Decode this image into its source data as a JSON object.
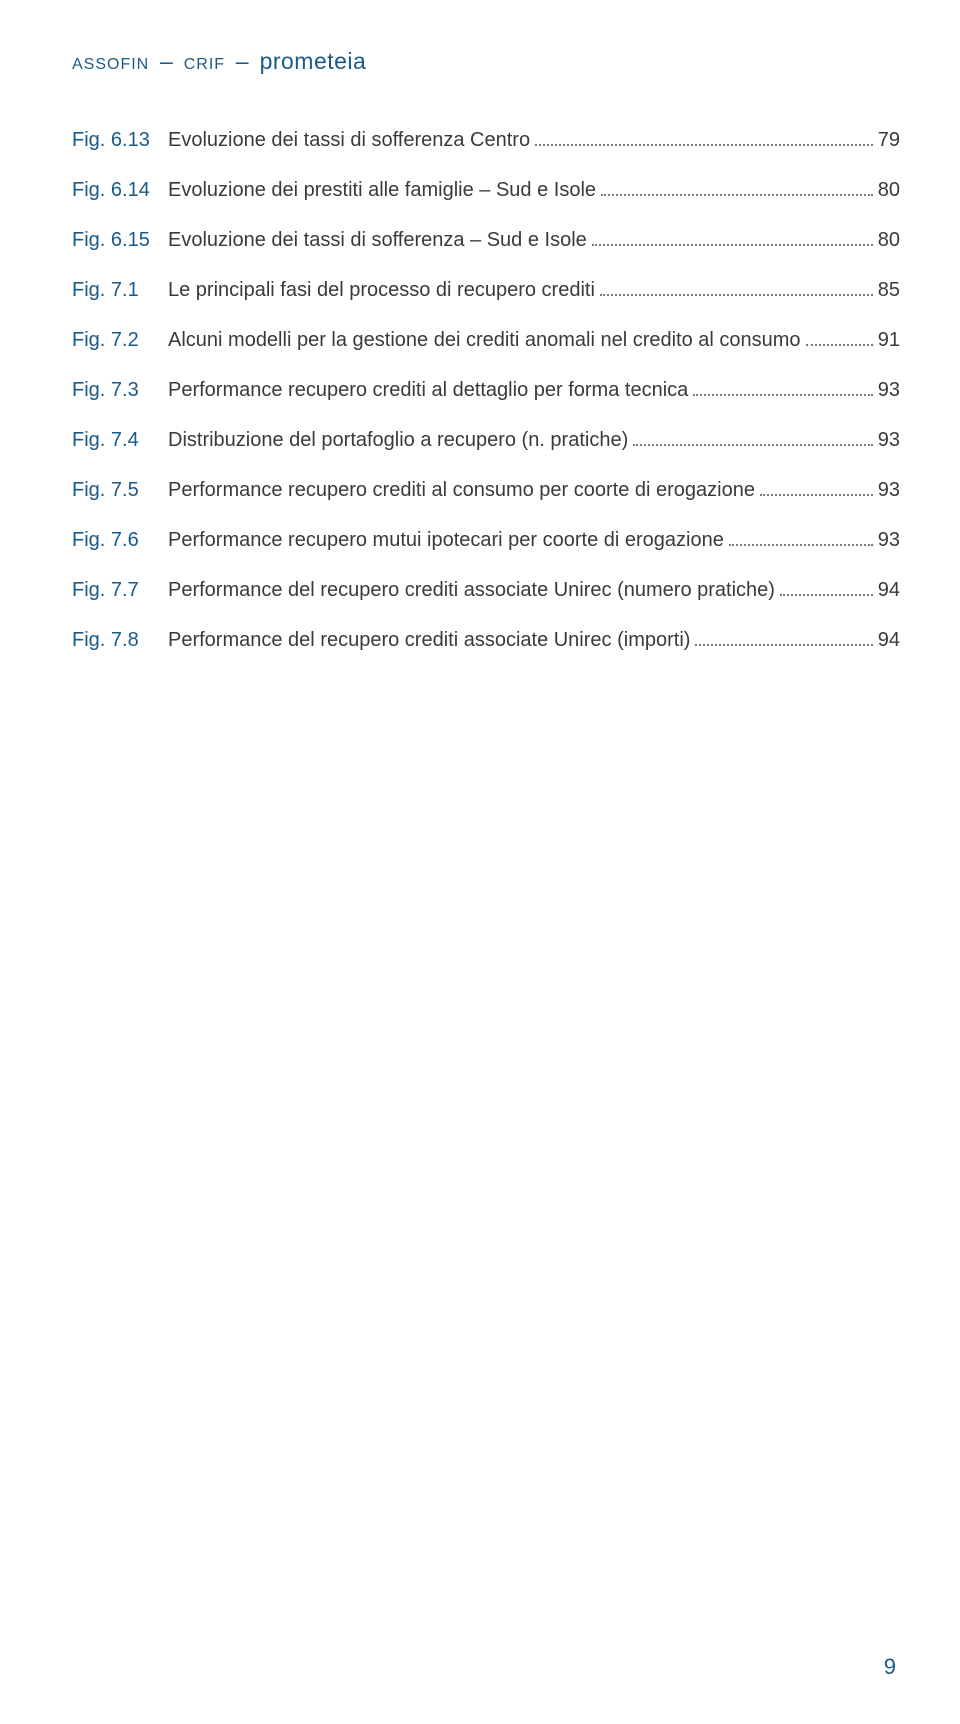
{
  "header": {
    "part1": "assofin",
    "sep": "–",
    "part2": "crif",
    "part3": "prometeia"
  },
  "toc": [
    {
      "fig": "Fig. 6.13",
      "title": "Evoluzione dei tassi di sofferenza Centro",
      "page": "79"
    },
    {
      "fig": "Fig. 6.14",
      "title": "Evoluzione dei prestiti alle famiglie – Sud e Isole",
      "page": "80"
    },
    {
      "fig": "Fig. 6.15",
      "title": "Evoluzione dei tassi di sofferenza – Sud e Isole",
      "page": "80"
    },
    {
      "fig": "Fig. 7.1",
      "title": "Le principali fasi del processo di recupero crediti",
      "page": "85"
    },
    {
      "fig": "Fig. 7.2",
      "title": "Alcuni modelli per la gestione dei crediti anomali nel credito al consumo",
      "page": "91"
    },
    {
      "fig": "Fig. 7.3",
      "title": "Performance recupero crediti al dettaglio per forma tecnica",
      "page": "93"
    },
    {
      "fig": "Fig. 7.4",
      "title": "Distribuzione del portafoglio a recupero (n. pratiche)",
      "page": "93"
    },
    {
      "fig": "Fig. 7.5",
      "title": "Performance recupero crediti al consumo per coorte di erogazione",
      "page": "93"
    },
    {
      "fig": "Fig. 7.6",
      "title": "Performance recupero mutui ipotecari per coorte di erogazione",
      "page": "93"
    },
    {
      "fig": "Fig. 7.7",
      "title": "Performance del recupero crediti associate Unirec (numero pratiche)",
      "page": "94"
    },
    {
      "fig": "Fig. 7.8",
      "title": "Performance del recupero crediti associate Unirec (importi)",
      "page": "94"
    }
  ],
  "pageNumber": "9"
}
